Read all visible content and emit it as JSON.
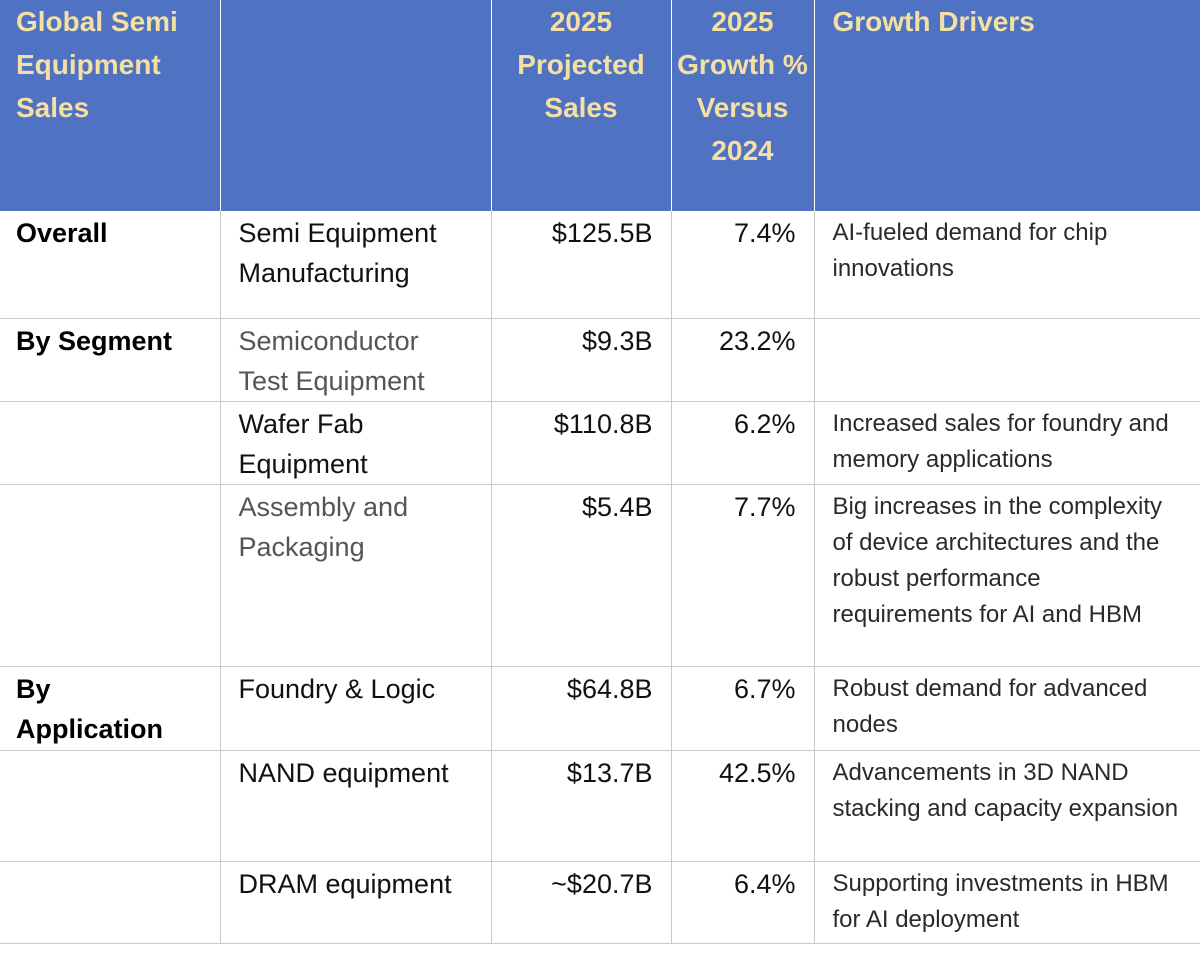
{
  "header": {
    "col1": "Global Semi Equipment Sales",
    "col2": "",
    "col3": "2025 Projected Sales",
    "col4": "2025 Growth % Versus 2024",
    "col5": "Growth Drivers"
  },
  "rows": [
    {
      "category": "Overall",
      "item": "Semi Equipment Manufacturing",
      "sales": "$125.5B",
      "growth": "7.4%",
      "drivers": "AI-fueled demand for chip innovations"
    },
    {
      "category": "By Segment",
      "item": "Semiconductor Test Equipment",
      "sales": "$9.3B",
      "growth": "23.2%",
      "drivers": ""
    },
    {
      "category": "",
      "item": "Wafer Fab Equipment",
      "sales": "$110.8B",
      "growth": "6.2%",
      "drivers": "Increased sales for foundry and memory applications"
    },
    {
      "category": "",
      "item": "Assembly and Packaging",
      "sales": "$5.4B",
      "growth": "7.7%",
      "drivers": "Big increases in the complexity of device architectures and the robust performance requirements for AI and HBM"
    },
    {
      "category": "By Application",
      "item": "Foundry & Logic",
      "sales": "$64.8B",
      "growth": "6.7%",
      "drivers": "Robust demand for advanced nodes"
    },
    {
      "category": "",
      "item": "NAND equipment",
      "sales": "$13.7B",
      "growth": "42.5%",
      "drivers": "Advancements in 3D NAND stacking and capacity expansion"
    },
    {
      "category": "",
      "item": "DRAM equipment",
      "sales": "~$20.7B",
      "growth": "6.4%",
      "drivers": "Supporting investments in HBM for AI deployment"
    }
  ]
}
